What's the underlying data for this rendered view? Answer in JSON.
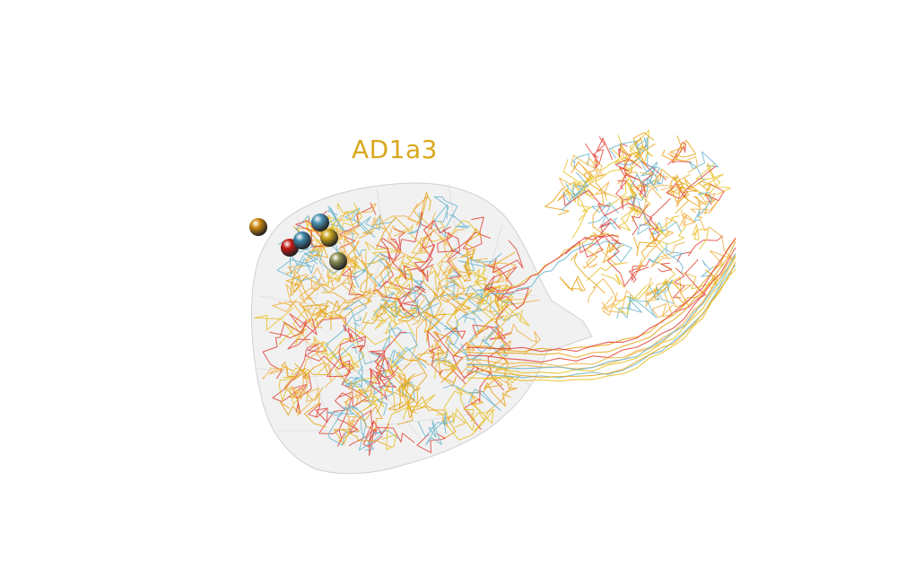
{
  "title": "AD1a3",
  "colors": {
    "title": "#d9a81c",
    "hull_fill": "#ececec",
    "hull_stroke": "#d0d0d0",
    "traces": [
      "#e8a417",
      "#e8c125",
      "#6bb6cf",
      "#e2433a",
      "#f0b041"
    ],
    "soma_colors": [
      "#d08a10",
      "#4d93b5",
      "#c41a12",
      "#3f85a9",
      "#c8a21a",
      "#8e8f55"
    ]
  },
  "neuron_count": 6
}
